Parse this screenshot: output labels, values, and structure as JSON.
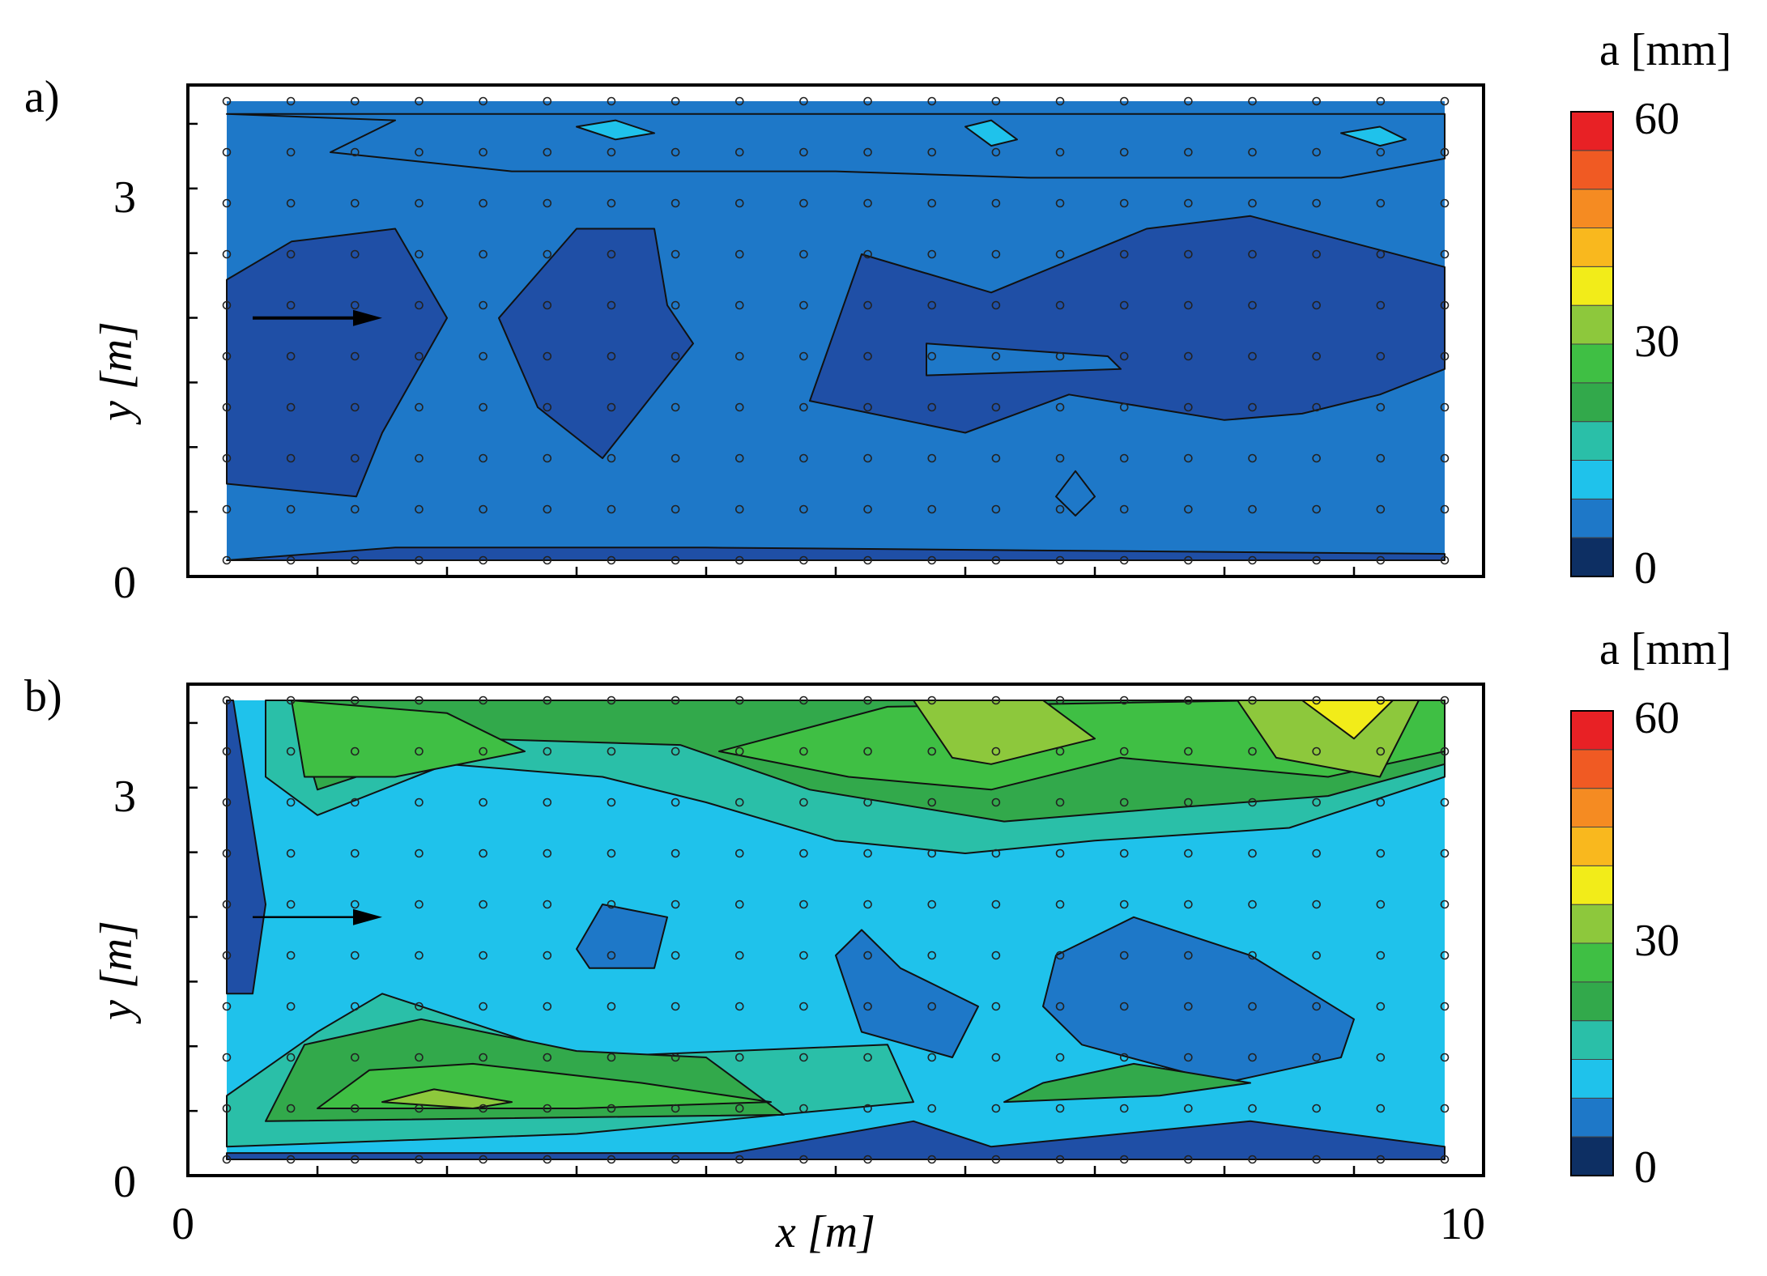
{
  "chart_data": [
    {
      "panel_label": "a)",
      "type": "heatmap",
      "xlabel": "x [m]",
      "ylabel": "y [m]",
      "xlim": [
        0,
        10
      ],
      "ylim": [
        0,
        3.6
      ],
      "x_ticks": [
        "0",
        "10"
      ],
      "y_ticks": [
        "0",
        "3"
      ],
      "colorbar": {
        "title": "a [mm]",
        "min": 0,
        "max": 60,
        "step": 5,
        "ticks": [
          "0",
          "30",
          "60"
        ]
      },
      "flow_arrow": {
        "x0": 0.5,
        "x1": 1.5,
        "y": 1.9
      },
      "dominant_range_mm": [
        5,
        15
      ],
      "bands": [
        {
          "level_mm": 10,
          "polygon": [
            [
              0.3,
              3.5
            ],
            [
              9.7,
              3.5
            ],
            [
              9.7,
              3.15
            ],
            [
              8.9,
              3.0
            ],
            [
              6.5,
              3.0
            ],
            [
              5.0,
              3.05
            ],
            [
              2.5,
              3.05
            ],
            [
              1.1,
              3.2
            ],
            [
              1.6,
              3.45
            ]
          ]
        },
        {
          "level_mm": 5,
          "polygon": [
            [
              0.3,
              2.2
            ],
            [
              0.8,
              2.5
            ],
            [
              1.6,
              2.6
            ],
            [
              2.0,
              1.9
            ],
            [
              1.5,
              1.0
            ],
            [
              1.3,
              0.5
            ],
            [
              0.3,
              0.6
            ]
          ]
        },
        {
          "level_mm": 5,
          "polygon": [
            [
              2.4,
              1.9
            ],
            [
              3.0,
              2.6
            ],
            [
              3.6,
              2.6
            ],
            [
              3.7,
              2.0
            ],
            [
              3.9,
              1.7
            ],
            [
              3.2,
              0.8
            ],
            [
              2.7,
              1.2
            ]
          ]
        },
        {
          "level_mm": 5,
          "polygon": [
            [
              4.8,
              1.25
            ],
            [
              5.2,
              2.4
            ],
            [
              6.2,
              2.1
            ],
            [
              7.4,
              2.6
            ],
            [
              8.2,
              2.7
            ],
            [
              9.7,
              2.3
            ],
            [
              9.7,
              1.5
            ],
            [
              9.2,
              1.3
            ],
            [
              8.6,
              1.15
            ],
            [
              8.0,
              1.1
            ],
            [
              6.8,
              1.3
            ],
            [
              6.0,
              1.0
            ]
          ]
        },
        {
          "level_mm": 5,
          "polygon": [
            [
              1.6,
              0.1
            ],
            [
              4.0,
              0.1
            ],
            [
              9.7,
              0.05
            ],
            [
              9.7,
              0.0
            ],
            [
              0.3,
              0.0
            ]
          ]
        },
        {
          "level_mm": 10,
          "polygon": [
            [
              5.7,
              1.7
            ],
            [
              7.1,
              1.6
            ],
            [
              7.2,
              1.5
            ],
            [
              5.7,
              1.45
            ]
          ]
        },
        {
          "level_mm": 15,
          "polygon": [
            [
              3.0,
              3.4
            ],
            [
              3.3,
              3.45
            ],
            [
              3.6,
              3.35
            ],
            [
              3.3,
              3.3
            ]
          ]
        },
        {
          "level_mm": 15,
          "polygon": [
            [
              6.0,
              3.4
            ],
            [
              6.2,
              3.45
            ],
            [
              6.4,
              3.3
            ],
            [
              6.2,
              3.25
            ]
          ]
        },
        {
          "level_mm": 15,
          "polygon": [
            [
              8.9,
              3.35
            ],
            [
              9.2,
              3.4
            ],
            [
              9.4,
              3.3
            ],
            [
              9.2,
              3.25
            ]
          ]
        },
        {
          "level_mm": 10,
          "polygon": [
            [
              6.7,
              0.5
            ],
            [
              6.85,
              0.7
            ],
            [
              7.0,
              0.5
            ],
            [
              6.85,
              0.35
            ]
          ]
        }
      ]
    },
    {
      "panel_label": "b)",
      "type": "heatmap",
      "xlabel": "x [m]",
      "ylabel": "y [m]",
      "xlim": [
        0,
        10
      ],
      "ylim": [
        0,
        3.6
      ],
      "x_ticks": [
        "0",
        "10"
      ],
      "y_ticks": [
        "0",
        "3"
      ],
      "colorbar": {
        "title": "a [mm]",
        "min": 0,
        "max": 60,
        "step": 5,
        "ticks": [
          "0",
          "30",
          "60"
        ]
      },
      "flow_arrow": {
        "x0": 0.5,
        "x1": 1.5,
        "y": 1.9
      },
      "dominant_range_mm": [
        10,
        45
      ],
      "bands": [
        {
          "level_mm": 20,
          "polygon": [
            [
              0.6,
              3.6
            ],
            [
              9.7,
              3.6
            ],
            [
              9.7,
              3.0
            ],
            [
              8.5,
              2.6
            ],
            [
              7.0,
              2.5
            ],
            [
              6.0,
              2.4
            ],
            [
              5.0,
              2.5
            ],
            [
              4.0,
              2.8
            ],
            [
              3.2,
              3.0
            ],
            [
              2.0,
              3.1
            ],
            [
              1.0,
              2.7
            ],
            [
              0.6,
              3.0
            ]
          ]
        },
        {
          "level_mm": 25,
          "polygon": [
            [
              0.8,
              3.6
            ],
            [
              9.7,
              3.6
            ],
            [
              9.7,
              3.1
            ],
            [
              8.8,
              2.85
            ],
            [
              7.5,
              2.75
            ],
            [
              6.3,
              2.65
            ],
            [
              4.8,
              2.9
            ],
            [
              3.8,
              3.25
            ],
            [
              2.2,
              3.3
            ],
            [
              1.0,
              2.9
            ]
          ]
        },
        {
          "level_mm": 30,
          "polygon": [
            [
              0.8,
              3.6
            ],
            [
              2.0,
              3.5
            ],
            [
              2.6,
              3.2
            ],
            [
              1.6,
              3.0
            ],
            [
              0.9,
              3.0
            ]
          ]
        },
        {
          "level_mm": 30,
          "polygon": [
            [
              4.1,
              3.2
            ],
            [
              5.4,
              3.55
            ],
            [
              8.3,
              3.6
            ],
            [
              9.7,
              3.6
            ],
            [
              9.7,
              3.2
            ],
            [
              8.8,
              3.0
            ],
            [
              7.2,
              3.15
            ],
            [
              6.2,
              2.9
            ],
            [
              5.1,
              3.0
            ]
          ]
        },
        {
          "level_mm": 35,
          "polygon": [
            [
              5.6,
              3.6
            ],
            [
              6.6,
              3.6
            ],
            [
              7.0,
              3.3
            ],
            [
              6.2,
              3.1
            ],
            [
              5.9,
              3.15
            ]
          ]
        },
        {
          "level_mm": 35,
          "polygon": [
            [
              8.1,
              3.6
            ],
            [
              9.5,
              3.6
            ],
            [
              9.2,
              3.0
            ],
            [
              8.4,
              3.15
            ]
          ]
        },
        {
          "level_mm": 40,
          "polygon": [
            [
              8.6,
              3.6
            ],
            [
              9.3,
              3.6
            ],
            [
              9.0,
              3.3
            ]
          ]
        },
        {
          "level_mm": 20,
          "polygon": [
            [
              0.3,
              0.1
            ],
            [
              3.0,
              0.2
            ],
            [
              5.6,
              0.45
            ],
            [
              5.4,
              0.9
            ],
            [
              3.0,
              0.8
            ],
            [
              1.5,
              1.3
            ],
            [
              1.0,
              1.0
            ],
            [
              0.3,
              0.5
            ]
          ]
        },
        {
          "level_mm": 25,
          "polygon": [
            [
              0.6,
              0.3
            ],
            [
              4.6,
              0.35
            ],
            [
              4.0,
              0.8
            ],
            [
              3.0,
              0.85
            ],
            [
              1.8,
              1.1
            ],
            [
              0.9,
              0.9
            ]
          ]
        },
        {
          "level_mm": 30,
          "polygon": [
            [
              1.0,
              0.4
            ],
            [
              3.0,
              0.4
            ],
            [
              4.5,
              0.45
            ],
            [
              3.5,
              0.6
            ],
            [
              2.2,
              0.75
            ],
            [
              1.4,
              0.7
            ]
          ]
        },
        {
          "level_mm": 35,
          "polygon": [
            [
              1.5,
              0.45
            ],
            [
              2.2,
              0.4
            ],
            [
              2.5,
              0.45
            ],
            [
              1.9,
              0.55
            ]
          ]
        },
        {
          "level_mm": 10,
          "polygon": [
            [
              3.0,
              1.65
            ],
            [
              3.2,
              2.0
            ],
            [
              3.7,
              1.9
            ],
            [
              3.6,
              1.5
            ],
            [
              3.1,
              1.5
            ]
          ]
        },
        {
          "level_mm": 10,
          "polygon": [
            [
              5.0,
              1.6
            ],
            [
              5.2,
              1.8
            ],
            [
              5.5,
              1.5
            ],
            [
              6.1,
              1.2
            ],
            [
              5.9,
              0.8
            ],
            [
              5.2,
              1.0
            ]
          ]
        },
        {
          "level_mm": 10,
          "polygon": [
            [
              6.6,
              1.2
            ],
            [
              6.7,
              1.6
            ],
            [
              7.3,
              1.9
            ],
            [
              8.2,
              1.6
            ],
            [
              9.0,
              1.1
            ],
            [
              8.9,
              0.8
            ],
            [
              8.0,
              0.6
            ],
            [
              6.9,
              0.9
            ]
          ]
        },
        {
          "level_mm": 5,
          "polygon": [
            [
              0.3,
              0.0
            ],
            [
              9.7,
              0.0
            ],
            [
              9.7,
              0.1
            ],
            [
              8.2,
              0.3
            ],
            [
              7.2,
              0.2
            ],
            [
              6.2,
              0.1
            ],
            [
              5.6,
              0.3
            ],
            [
              4.2,
              0.05
            ],
            [
              0.3,
              0.05
            ]
          ]
        },
        {
          "level_mm": 5,
          "polygon": [
            [
              0.3,
              3.6
            ],
            [
              0.35,
              3.6
            ],
            [
              0.6,
              2.0
            ],
            [
              0.5,
              1.3
            ],
            [
              0.3,
              1.3
            ]
          ]
        },
        {
          "level_mm": 25,
          "polygon": [
            [
              6.3,
              0.45
            ],
            [
              7.5,
              0.5
            ],
            [
              8.2,
              0.6
            ],
            [
              7.3,
              0.75
            ],
            [
              6.6,
              0.6
            ]
          ]
        }
      ]
    }
  ]
}
